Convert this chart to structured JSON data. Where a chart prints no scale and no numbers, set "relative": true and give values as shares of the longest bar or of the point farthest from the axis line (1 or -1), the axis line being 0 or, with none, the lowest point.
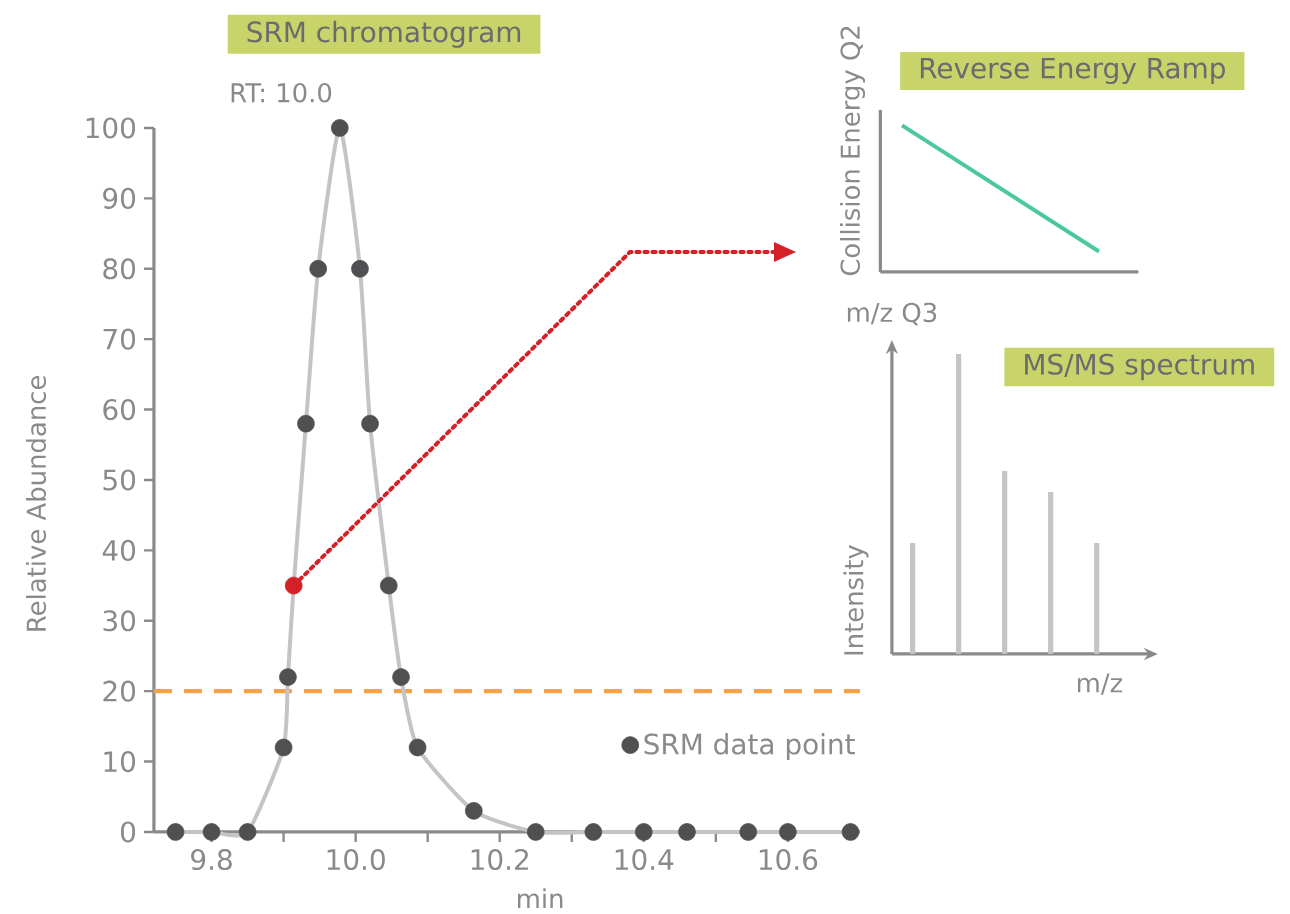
{
  "chart_data": [
    {
      "type": "line",
      "title": "SRM chromatogram",
      "xlabel": "min",
      "ylabel": "Relative Abundance",
      "annotations": [
        "RT: 10.0"
      ],
      "x": [
        9.75,
        9.8,
        9.85,
        9.9,
        9.906,
        9.914,
        9.931,
        9.948,
        9.978,
        10.006,
        10.02,
        10.046,
        10.063,
        10.086,
        10.164,
        10.25,
        10.33,
        10.4,
        10.46,
        10.545,
        10.6,
        10.687
      ],
      "series": [
        {
          "type": "line",
          "color": "#c4c4c6",
          "marker": "none",
          "values": [
            0,
            0,
            0,
            12,
            22,
            35,
            58,
            80,
            100,
            80,
            58,
            35,
            22,
            12,
            3,
            0,
            0,
            0,
            0,
            0,
            0,
            0
          ]
        },
        {
          "type": "scatter",
          "name": "SRM data point",
          "color": "#505052",
          "marker": "circle",
          "colors": [
            "#505052",
            "#505052",
            "#505052",
            "#505052",
            "#505052",
            "#d42027",
            "#505052",
            "#505052",
            "#505052",
            "#505052",
            "#505052",
            "#505052",
            "#505052",
            "#505052",
            "#505052",
            "#505052",
            "#505052",
            "#505052",
            "#505052",
            "#505052",
            "#505052",
            "#505052"
          ],
          "values": [
            0,
            0,
            0,
            12,
            22,
            35,
            58,
            80,
            100,
            80,
            58,
            35,
            22,
            12,
            3,
            0,
            0,
            0,
            0,
            0,
            0,
            0
          ]
        }
      ],
      "xlim": [
        9.72,
        10.7
      ],
      "ylim": [
        0,
        100
      ],
      "xticks": [
        {
          "value": 9.8,
          "label": "9.8"
        },
        {
          "value": 9.9,
          "label": null
        },
        {
          "value": 10.0,
          "label": "10.0"
        },
        {
          "value": 10.1,
          "label": null
        },
        {
          "value": 10.2,
          "label": "10.2"
        },
        {
          "value": 10.3,
          "label": null
        },
        {
          "value": 10.4,
          "label": "10.4"
        },
        {
          "value": 10.5,
          "label": null
        },
        {
          "value": 10.6,
          "label": "10.6"
        }
      ],
      "yticks": [
        0,
        10,
        20,
        30,
        40,
        50,
        60,
        70,
        80,
        90,
        100
      ],
      "ref_lines": [
        {
          "axis": "y",
          "value": 20,
          "color": "#f5a04a",
          "line_style": "dashed"
        }
      ],
      "legend": "bottom right",
      "grid": false
    },
    {
      "type": "line",
      "title": "Reverse Energy Ramp",
      "ylabel": "Collision Energy Q2",
      "relative": true,
      "categories": [
        null,
        null
      ],
      "series": [
        {
          "color": "#4cc8a0",
          "values": [
            1,
            0.14
          ]
        }
      ]
    },
    {
      "type": "bar",
      "title": "MS/MS spectrum",
      "xlabel": "m/z",
      "ylabel": "Intensity",
      "annotations": [
        "m/z Q3"
      ],
      "relative": true,
      "categories": [
        null,
        null,
        null,
        null,
        null
      ],
      "values": [
        0.37,
        1,
        0.61,
        0.54,
        0.37
      ],
      "color": "#c4c4c6"
    }
  ]
}
